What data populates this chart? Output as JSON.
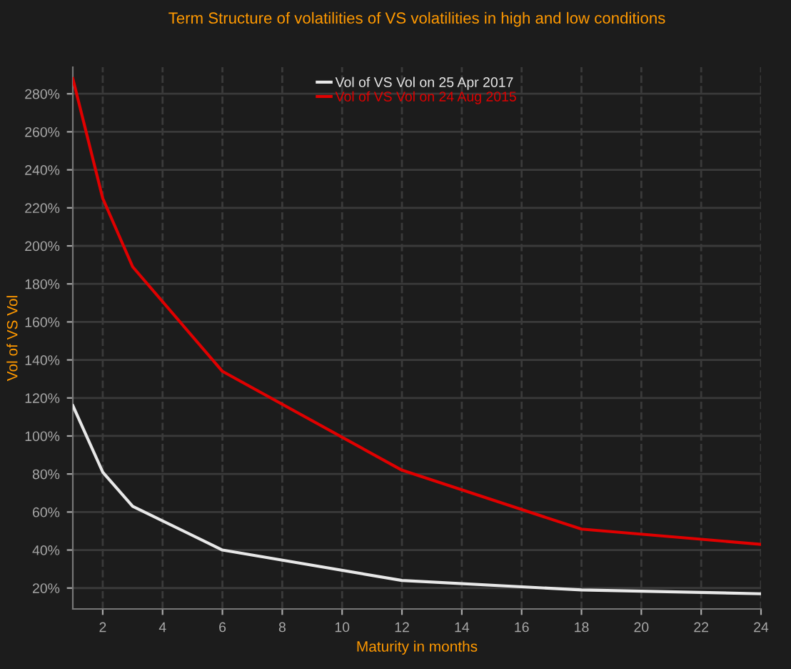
{
  "chart_data": {
    "type": "line",
    "title": "Term Structure of volatilities of VS volatilities in high and low conditions",
    "xlabel": "Maturity in months",
    "ylabel": "Vol of VS Vol",
    "x": [
      1,
      2,
      3,
      6,
      12,
      18,
      24
    ],
    "series": [
      {
        "name": "Vol of VS Vol on 25 Apr 2017",
        "color": "#e8e8e8",
        "values": [
          116,
          81,
          63,
          40,
          24,
          19,
          17
        ]
      },
      {
        "name": "Vol of VS Vol on 24 Aug 2015",
        "color": "#e00000",
        "values": [
          288,
          225,
          189,
          134,
          82,
          51,
          43
        ]
      }
    ],
    "xlim": [
      1,
      24
    ],
    "xticks": [
      2,
      4,
      6,
      8,
      10,
      12,
      14,
      16,
      18,
      20,
      22,
      24
    ],
    "ylim": [
      9,
      294
    ],
    "yticks": [
      {
        "value": 20,
        "label": "20%"
      },
      {
        "value": 40,
        "label": "40%"
      },
      {
        "value": 60,
        "label": "60%"
      },
      {
        "value": 80,
        "label": "80%"
      },
      {
        "value": 100,
        "label": "100%"
      },
      {
        "value": 120,
        "label": "120%"
      },
      {
        "value": 140,
        "label": "140%"
      },
      {
        "value": 160,
        "label": "160%"
      },
      {
        "value": 180,
        "label": "180%"
      },
      {
        "value": 200,
        "label": "200%"
      },
      {
        "value": 220,
        "label": "220%"
      },
      {
        "value": 240,
        "label": "240%"
      },
      {
        "value": 260,
        "label": "260%"
      },
      {
        "value": 280,
        "label": "280%"
      }
    ],
    "grid": true,
    "legend": "top",
    "marker": "none",
    "line_style": "solid"
  }
}
